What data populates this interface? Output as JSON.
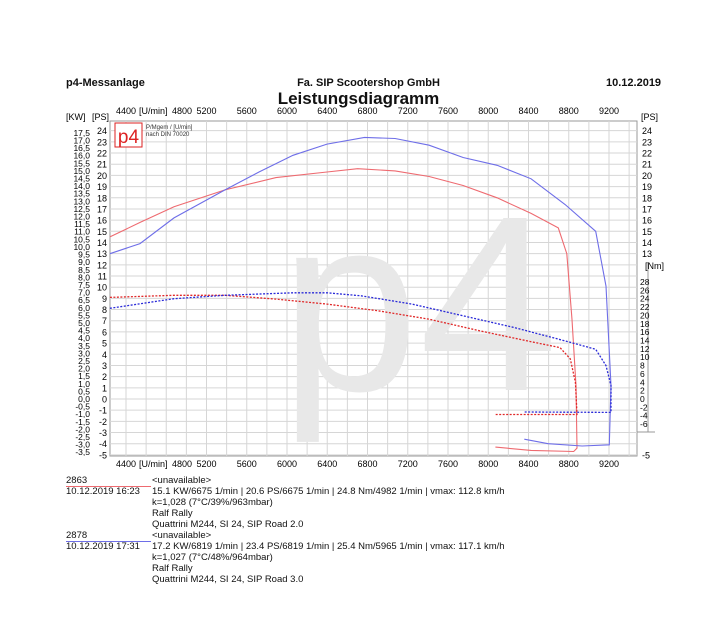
{
  "header": {
    "left": "p4-Messanlage",
    "center": "Fa. SIP Scootershop GmbH",
    "right": "10.12.2019",
    "title": "Leistungsdiagramm"
  },
  "logo": {
    "text": "p4",
    "caption_1": "P/Mgem / [U/min]",
    "caption_2": "nach DIN 70020",
    "watermark": "p4"
  },
  "colors": {
    "run1_power": "#ee6a70",
    "run1_torque": "#e02828",
    "run2_power": "#6e6ee8",
    "run2_torque": "#2a2ad8",
    "grid": "#d6d6d6"
  },
  "chart_data": {
    "type": "line",
    "grid": true,
    "x_axis": {
      "label": "[U/min]",
      "range": [
        4240,
        9400
      ],
      "ticks": [
        4400,
        4800,
        5200,
        5600,
        6000,
        6400,
        6800,
        7200,
        7600,
        8000,
        8400,
        8800,
        9200
      ]
    },
    "y_axis_left_kw": {
      "label": "[KW]",
      "ticks": [
        17.5,
        17.0,
        16.5,
        16.0,
        15.5,
        15.0,
        14.5,
        14.0,
        13.5,
        13.0,
        12.5,
        12.0,
        11.5,
        11.0,
        10.5,
        10.0,
        9.5,
        9.0,
        8.5,
        8.0,
        7.5,
        7.0,
        6.5,
        6.0,
        5.5,
        5.0,
        4.5,
        4.0,
        3.5,
        3.0,
        2.5,
        2.0,
        1.5,
        1.0,
        0.5,
        0.0,
        -0.5,
        -1.0,
        -1.5,
        -2.0,
        -2.5,
        -3.0,
        -3.5
      ]
    },
    "y_axis_left_ps": {
      "label": "[PS]",
      "range": [
        -5,
        24
      ],
      "ticks": [
        24,
        23,
        22,
        21,
        20,
        19,
        18,
        17,
        16,
        15,
        14,
        13,
        12,
        11,
        10,
        9,
        8,
        7,
        6,
        5,
        4,
        3,
        2,
        1,
        0,
        -1,
        -2,
        -3,
        -4,
        -5
      ]
    },
    "y_axis_right_ps": {
      "label": "[PS]",
      "ticks": [
        24,
        23,
        22,
        21,
        20,
        19,
        18,
        17,
        16,
        15,
        14,
        13,
        -5
      ]
    },
    "y_axis_right_nm": {
      "label": "[Nm]",
      "ticks": [
        28,
        26,
        24,
        22,
        20,
        18,
        16,
        14,
        12,
        10,
        8,
        6,
        4,
        2,
        0,
        -2,
        -4,
        -6
      ]
    },
    "series": [
      {
        "name": "2863",
        "power_ps": [
          [
            4240,
            14.5
          ],
          [
            4540,
            15.8
          ],
          [
            4877,
            17.2
          ],
          [
            5384,
            18.7
          ],
          [
            5891,
            19.8
          ],
          [
            6398,
            20.3
          ],
          [
            6702,
            20.6
          ],
          [
            7074,
            20.4
          ],
          [
            7412,
            19.9
          ],
          [
            7750,
            19.1
          ],
          [
            8088,
            18.0
          ],
          [
            8426,
            16.6
          ],
          [
            8696,
            15.3
          ],
          [
            8781,
            13.0
          ],
          [
            8832,
            7.1
          ],
          [
            8872,
            1.2
          ],
          [
            8882,
            -4.4
          ],
          [
            8849,
            -4.7
          ],
          [
            8426,
            -4.6
          ],
          [
            8071,
            -4.3
          ]
        ],
        "torque_nm": [
          [
            4240,
            24.3
          ],
          [
            4877,
            24.8
          ],
          [
            5384,
            24.8
          ],
          [
            5891,
            23.9
          ],
          [
            6398,
            22.7
          ],
          [
            6905,
            21.1
          ],
          [
            7412,
            19.1
          ],
          [
            7919,
            16.3
          ],
          [
            8426,
            13.7
          ],
          [
            8713,
            12.3
          ],
          [
            8815,
            9.6
          ],
          [
            8866,
            4.0
          ],
          [
            8882,
            -3.6
          ],
          [
            8882,
            -3.7
          ],
          [
            8071,
            -3.7
          ]
        ]
      },
      {
        "name": "2878",
        "power_ps": [
          [
            4240,
            13.0
          ],
          [
            4539,
            13.9
          ],
          [
            4877,
            16.2
          ],
          [
            5384,
            18.7
          ],
          [
            5722,
            20.3
          ],
          [
            6060,
            21.8
          ],
          [
            6398,
            22.8
          ],
          [
            6770,
            23.4
          ],
          [
            7074,
            23.3
          ],
          [
            7412,
            22.7
          ],
          [
            7750,
            21.6
          ],
          [
            8088,
            20.9
          ],
          [
            8426,
            19.7
          ],
          [
            8764,
            17.4
          ],
          [
            9068,
            15.0
          ],
          [
            9170,
            10.1
          ],
          [
            9220,
            1.2
          ],
          [
            9203,
            -4.1
          ],
          [
            8933,
            -4.2
          ],
          [
            8595,
            -4.0
          ],
          [
            8358,
            -3.6
          ]
        ],
        "torque_nm": [
          [
            4240,
            21.7
          ],
          [
            4877,
            24.0
          ],
          [
            5384,
            24.8
          ],
          [
            6060,
            25.4
          ],
          [
            6398,
            25.4
          ],
          [
            6736,
            24.7
          ],
          [
            7243,
            22.7
          ],
          [
            7750,
            19.9
          ],
          [
            8257,
            17.1
          ],
          [
            8764,
            13.9
          ],
          [
            9068,
            11.9
          ],
          [
            9170,
            8.0
          ],
          [
            9220,
            3.2
          ],
          [
            9220,
            -3.0
          ],
          [
            9220,
            -3.2
          ],
          [
            8358,
            -3.1
          ]
        ]
      }
    ]
  },
  "runs": [
    {
      "id": "2863",
      "datetime": "10.12.2019   16:23",
      "vehicle": "<unavailable>",
      "summary": "15.1 KW/6675 1/min  |  20.6 PS/6675 1/min  |  24.8 Nm/4982 1/min | vmax: 112.8 km/h",
      "correction": "k=1,028 (7°C/39%/963mbar)",
      "rider": "Ralf Rally",
      "setup": "Quattrini M244, SI 24, SIP Road 2.0"
    },
    {
      "id": "2878",
      "datetime": "10.12.2019   17:31",
      "vehicle": "<unavailable>",
      "summary": "17.2 KW/6819 1/min  |  23.4 PS/6819 1/min  |  25.4 Nm/5965 1/min | vmax: 117.1 km/h",
      "correction": "k=1,027 (7°C/48%/964mbar)",
      "rider": "Ralf Rally",
      "setup": "Quattrini M244, SI 24, SIP Road 3.0"
    }
  ]
}
